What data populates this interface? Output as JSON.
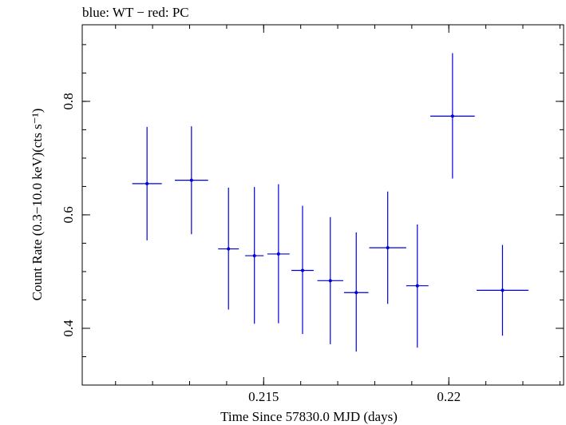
{
  "chart_data": {
    "type": "scatter",
    "title": "blue: WT − red: PC",
    "xlabel": "Time Since 57830.0 MJD (days)",
    "ylabel": "Count Rate (0.3−10.0 keV)(cts s⁻¹)",
    "xlim": [
      0.2101,
      0.2231
    ],
    "ylim": [
      0.3,
      0.935
    ],
    "x_ticks": [
      0.215,
      0.22
    ],
    "x_tick_labels": [
      "0.215",
      "0.22"
    ],
    "y_ticks": [
      0.4,
      0.6,
      0.8
    ],
    "y_tick_labels": [
      "0.4",
      "0.6",
      "0.8"
    ],
    "grid": false,
    "series": [
      {
        "color": "#0000dd",
        "points": [
          {
            "x": 0.21185,
            "y": 0.655,
            "xerr": 0.0004,
            "yerr_lo": 0.1,
            "yerr_hi": 0.1
          },
          {
            "x": 0.21305,
            "y": 0.661,
            "xerr": 0.00045,
            "yerr_lo": 0.095,
            "yerr_hi": 0.095
          },
          {
            "x": 0.21405,
            "y": 0.54,
            "xerr": 0.00028,
            "yerr_lo": 0.107,
            "yerr_hi": 0.108
          },
          {
            "x": 0.21475,
            "y": 0.528,
            "xerr": 0.00025,
            "yerr_lo": 0.12,
            "yerr_hi": 0.121
          },
          {
            "x": 0.2154,
            "y": 0.531,
            "xerr": 0.0003,
            "yerr_lo": 0.122,
            "yerr_hi": 0.123
          },
          {
            "x": 0.21605,
            "y": 0.502,
            "xerr": 0.0003,
            "yerr_lo": 0.112,
            "yerr_hi": 0.114
          },
          {
            "x": 0.2168,
            "y": 0.484,
            "xerr": 0.00035,
            "yerr_lo": 0.112,
            "yerr_hi": 0.112
          },
          {
            "x": 0.2175,
            "y": 0.463,
            "xerr": 0.00033,
            "yerr_lo": 0.104,
            "yerr_hi": 0.106
          },
          {
            "x": 0.21835,
            "y": 0.542,
            "xerr": 0.0005,
            "yerr_lo": 0.099,
            "yerr_hi": 0.099
          },
          {
            "x": 0.21915,
            "y": 0.475,
            "xerr": 0.0003,
            "yerr_lo": 0.109,
            "yerr_hi": 0.108
          },
          {
            "x": 0.2201,
            "y": 0.774,
            "xerr": 0.0006,
            "yerr_lo": 0.11,
            "yerr_hi": 0.111
          },
          {
            "x": 0.22145,
            "y": 0.467,
            "xerr": 0.0007,
            "yerr_lo": 0.08,
            "yerr_hi": 0.08
          }
        ]
      }
    ]
  }
}
